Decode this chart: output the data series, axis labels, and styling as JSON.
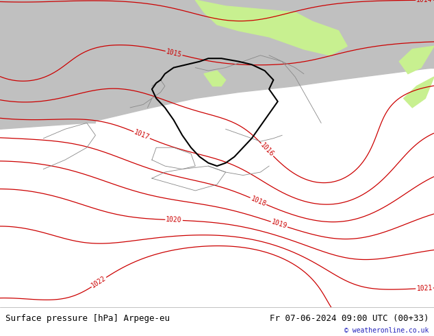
{
  "title_left": "Surface pressure [hPa] Arpege-eu",
  "title_right": "Fr 07-06-2024 09:00 UTC (00+33)",
  "copyright": "© weatheronline.co.uk",
  "bg_green": "#c8f090",
  "bg_grey": "#c0c0c0",
  "isobar_red": "#cc0000",
  "isobar_blue": "#0000dd",
  "isobar_black": "#000000",
  "border_de_color": "#000000",
  "border_eu_color": "#888888",
  "label_size": 7,
  "title_size": 9,
  "copyright_size": 7,
  "bottom_bar_color": "#ffffff"
}
